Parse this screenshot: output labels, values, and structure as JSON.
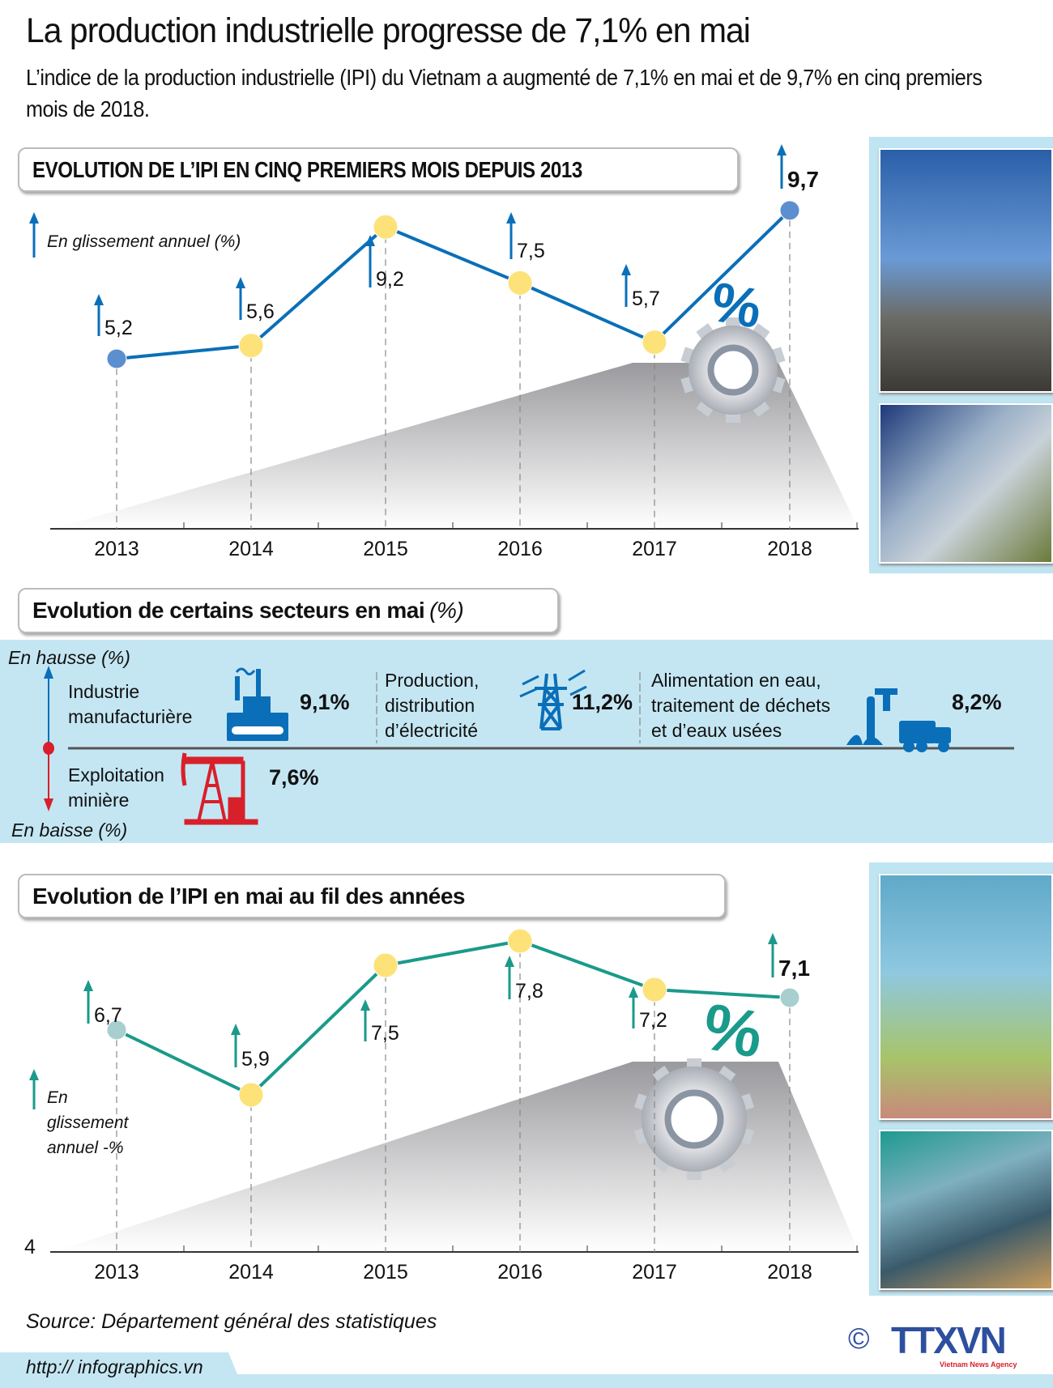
{
  "header": {
    "title": "La production industrielle progresse de 7,1% en mai",
    "subtitle": "L’indice de la production industrielle (IPI) du Vietnam a augmenté de 7,1% en mai et de 9,7% en cinq premiers mois de 2018."
  },
  "chart_data": [
    {
      "type": "line",
      "title": "EVOLUTION DE L’IPI EN CINQ PREMIERS MOIS DEPUIS 2013",
      "ylabel": "En glissement annuel (%)",
      "categories": [
        "2013",
        "2014",
        "2015",
        "2016",
        "2017",
        "2018"
      ],
      "values": [
        5.2,
        5.6,
        9.2,
        7.5,
        5.7,
        9.7
      ],
      "labels": [
        "5,2",
        "5,6",
        "9,2",
        "7,5",
        "5,7",
        "9,7"
      ],
      "ylim": [
        0,
        10
      ],
      "color": "#0a6fb8"
    },
    {
      "type": "line",
      "title": "Evolution de l’IPI en mai au fil des années",
      "ylabel": "En glissement annuel -%",
      "categories": [
        "2013",
        "2014",
        "2015",
        "2016",
        "2017",
        "2018"
      ],
      "values": [
        6.7,
        5.9,
        7.5,
        7.8,
        7.2,
        7.1
      ],
      "labels": [
        "6,7",
        "5,9",
        "7,5",
        "7,8",
        "7,2",
        "7,1"
      ],
      "ylim": [
        4,
        8
      ],
      "y_tick": "4",
      "color": "#1a9a8a"
    }
  ],
  "sectors": {
    "title": "Evolution de certains secteurs en mai",
    "unit": "(%)",
    "up_label": "En hausse (%)",
    "down_label": "En baisse (%)",
    "up": [
      {
        "name_1": "Industrie",
        "name_2": "manufacturière",
        "value": "9,1%",
        "icon": "factory-icon"
      },
      {
        "name_1": "Production,",
        "name_2": "distribution",
        "name_3": "d’électricité",
        "value": "11,2%",
        "icon": "power-tower-icon"
      },
      {
        "name_1": "Alimentation en eau,",
        "name_2": "traitement de déchets",
        "name_3": "et d’eaux usées",
        "value": "8,2%",
        "icon": "faucet-truck-icon"
      }
    ],
    "down": [
      {
        "name_1": "Exploitation",
        "name_2": "minière",
        "value": "7,6%",
        "icon": "oil-pump-icon"
      }
    ]
  },
  "footer": {
    "source": "Source: Département général des statistiques",
    "url": "http:// infographics.vn",
    "logo": "TTXVN",
    "logo_sub": "Vietnam News Agency",
    "copyright": "©"
  }
}
